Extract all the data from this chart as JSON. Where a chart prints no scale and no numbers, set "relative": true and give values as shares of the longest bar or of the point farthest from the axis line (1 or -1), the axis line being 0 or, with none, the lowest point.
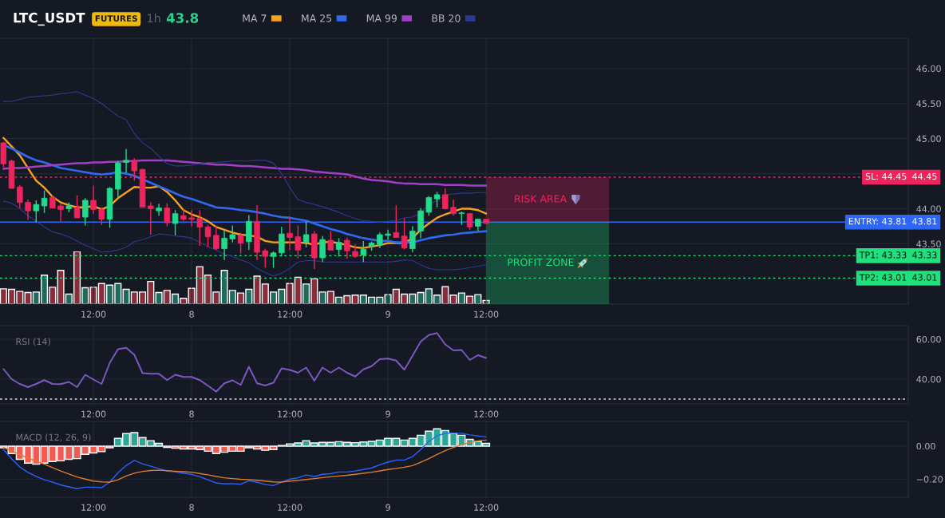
{
  "chart_data": [
    {
      "type": "candlestick",
      "title": "LTC_USDT",
      "annotations": [
        "FUTURES",
        "1h",
        "43.8",
        "44.45",
        "43.81",
        "43.33",
        "43.01",
        "RISK AREA",
        "PROFIT ZONE"
      ],
      "categories": [
        null,
        null,
        null,
        null,
        null,
        null,
        null,
        null,
        null,
        null,
        null,
        "12:00",
        null,
        null,
        null,
        null,
        null,
        null,
        null,
        null,
        null,
        null,
        null,
        "8",
        null,
        null,
        null,
        null,
        null,
        null,
        null,
        null,
        null,
        null,
        null,
        "12:00",
        null,
        null,
        null,
        null,
        null,
        null,
        null,
        null,
        null,
        null,
        null,
        "9",
        null,
        null,
        null,
        null,
        null,
        null,
        null,
        null,
        null,
        null,
        null,
        "12:00"
      ],
      "ohlc": [
        [
          44.94,
          44.95,
          44.59,
          44.64
        ],
        [
          44.68,
          44.7,
          44.29,
          44.29
        ],
        [
          44.31,
          44.34,
          44.01,
          44.09
        ],
        [
          44.09,
          44.13,
          43.84,
          43.97
        ],
        [
          43.97,
          44.12,
          43.8,
          44.06
        ],
        [
          44.04,
          44.26,
          43.94,
          44.15
        ],
        [
          44.16,
          44.19,
          44.01,
          44.01
        ],
        [
          44.04,
          44.07,
          43.82,
          43.99
        ],
        [
          44.0,
          44.09,
          43.95,
          44.04
        ],
        [
          44.02,
          44.19,
          43.87,
          43.87
        ],
        [
          43.88,
          44.15,
          43.76,
          44.12
        ],
        [
          44.12,
          44.33,
          43.93,
          43.99
        ],
        [
          43.99,
          44.02,
          43.77,
          43.85
        ],
        [
          43.85,
          44.31,
          43.73,
          44.29
        ],
        [
          44.28,
          44.68,
          44.14,
          44.65
        ],
        [
          44.66,
          44.85,
          44.51,
          44.69
        ],
        [
          44.69,
          44.72,
          44.4,
          44.54
        ],
        [
          44.56,
          44.57,
          44.02,
          44.02
        ],
        [
          44.04,
          44.09,
          43.63,
          44.0
        ],
        [
          43.97,
          44.07,
          43.9,
          44.01
        ],
        [
          44.01,
          44.08,
          43.75,
          43.8
        ],
        [
          43.79,
          43.98,
          43.62,
          43.93
        ],
        [
          43.9,
          43.99,
          43.83,
          43.85
        ],
        [
          43.87,
          43.98,
          43.75,
          43.85
        ],
        [
          43.86,
          43.98,
          43.47,
          43.74
        ],
        [
          43.74,
          43.77,
          43.45,
          43.6
        ],
        [
          43.62,
          43.75,
          43.41,
          43.43
        ],
        [
          43.43,
          43.7,
          43.27,
          43.58
        ],
        [
          43.57,
          43.76,
          43.52,
          43.63
        ],
        [
          43.62,
          43.66,
          43.36,
          43.51
        ],
        [
          43.53,
          43.91,
          43.41,
          43.82
        ],
        [
          43.82,
          44.05,
          43.27,
          43.38
        ],
        [
          43.4,
          43.43,
          43.16,
          43.32
        ],
        [
          43.32,
          43.39,
          43.16,
          43.37
        ],
        [
          43.37,
          43.74,
          43.32,
          43.64
        ],
        [
          43.65,
          43.89,
          43.41,
          43.59
        ],
        [
          43.6,
          43.76,
          43.29,
          43.41
        ],
        [
          43.52,
          43.82,
          43.45,
          43.63
        ],
        [
          43.64,
          43.68,
          43.14,
          43.3
        ],
        [
          43.3,
          43.61,
          43.24,
          43.56
        ],
        [
          43.55,
          43.68,
          43.41,
          43.41
        ],
        [
          43.42,
          43.58,
          43.32,
          43.52
        ],
        [
          43.55,
          43.59,
          43.29,
          43.4
        ],
        [
          43.39,
          43.49,
          43.3,
          43.32
        ],
        [
          43.34,
          43.54,
          43.24,
          43.42
        ],
        [
          43.47,
          43.53,
          43.4,
          43.51
        ],
        [
          43.49,
          43.66,
          43.44,
          43.63
        ],
        [
          43.62,
          43.7,
          43.56,
          43.64
        ],
        [
          43.66,
          44.05,
          43.59,
          43.59
        ],
        [
          43.61,
          43.86,
          43.42,
          43.44
        ],
        [
          43.43,
          43.75,
          43.38,
          43.68
        ],
        [
          43.68,
          44.01,
          43.58,
          43.97
        ],
        [
          43.95,
          44.18,
          43.9,
          44.16
        ],
        [
          44.14,
          44.24,
          44.02,
          44.2
        ],
        [
          44.2,
          44.29,
          43.99,
          44.0
        ],
        [
          44.02,
          44.13,
          43.9,
          43.93
        ],
        [
          43.93,
          43.96,
          43.77,
          43.94
        ],
        [
          43.93,
          43.93,
          43.7,
          43.74
        ],
        [
          43.75,
          43.85,
          43.68,
          43.85
        ],
        [
          43.85,
          43.85,
          43.79,
          43.79
        ]
      ],
      "colors": [
        "#f0245c",
        "#f0245c",
        "#f0245c",
        "#f0245c",
        "#23d98b",
        "#23d98b",
        "#f0245c",
        "#f0245c",
        "#23d98b",
        "#f0245c",
        "#23d98b",
        "#f0245c",
        "#f0245c",
        "#23d98b",
        "#23d98b",
        "#23d98b",
        "#f0245c",
        "#f0245c",
        "#f0245c",
        "#23d98b",
        "#f0245c",
        "#23d98b",
        "#f0245c",
        "#f0245c",
        "#f0245c",
        "#f0245c",
        "#f0245c",
        "#23d98b",
        "#23d98b",
        "#f0245c",
        "#23d98b",
        "#f0245c",
        "#f0245c",
        "#23d98b",
        "#23d98b",
        "#f0245c",
        "#f0245c",
        "#23d98b",
        "#f0245c",
        "#23d98b",
        "#f0245c",
        "#23d98b",
        "#f0245c",
        "#f0245c",
        "#23d98b",
        "#23d98b",
        "#23d98b",
        "#23d98b",
        "#f0245c",
        "#f0245c",
        "#23d98b",
        "#23d98b",
        "#23d98b",
        "#23d98b",
        "#f0245c",
        "#f0245c",
        "#23d98b",
        "#f0245c",
        "#23d98b",
        "#f0245c"
      ],
      "series": [
        {
          "name": "MA 7",
          "type": "line",
          "color": "#f7a21b",
          "values": [
            45.01,
            44.89,
            44.76,
            44.58,
            44.4,
            44.3,
            44.17,
            44.09,
            44.05,
            44.02,
            44.02,
            44.04,
            43.99,
            44.04,
            44.15,
            44.23,
            44.31,
            44.3,
            44.3,
            44.32,
            44.24,
            44.12,
            43.98,
            43.92,
            43.88,
            43.82,
            43.74,
            43.7,
            43.66,
            43.63,
            43.62,
            43.6,
            43.54,
            43.52,
            43.52,
            43.52,
            43.52,
            43.51,
            43.49,
            43.52,
            43.53,
            43.51,
            43.48,
            43.45,
            43.44,
            43.46,
            43.48,
            43.51,
            43.51,
            43.51,
            43.58,
            43.7,
            43.79,
            43.87,
            43.92,
            43.96,
            44.0,
            44.0,
            43.98,
            43.93
          ]
        },
        {
          "name": "MA 25",
          "type": "line",
          "color": "#3168f0",
          "values": [
            44.91,
            44.86,
            44.8,
            44.74,
            44.69,
            44.66,
            44.62,
            44.58,
            44.56,
            44.54,
            44.52,
            44.5,
            44.49,
            44.5,
            44.52,
            44.5,
            44.47,
            null,
            44.37,
            44.32,
            44.27,
            44.22,
            44.17,
            44.14,
            44.1,
            44.06,
            44.02,
            44.01,
            44.0,
            43.98,
            43.97,
            43.95,
            43.93,
            43.9,
            43.88,
            43.87,
            43.85,
            43.83,
            43.79,
            43.75,
            43.71,
            43.68,
            43.64,
            43.61,
            43.58,
            43.56,
            43.54,
            43.54,
            43.52,
            43.52,
            43.52,
            43.55,
            43.58,
            43.6,
            43.62,
            43.63,
            43.65,
            43.66,
            43.67,
            43.68
          ]
        },
        {
          "name": "MA 99",
          "type": "line",
          "color": "#a13fc6",
          "values": [
            44.57,
            44.58,
            44.58,
            44.59,
            44.6,
            44.61,
            44.62,
            44.63,
            44.64,
            44.65,
            44.65,
            44.66,
            44.66,
            44.67,
            44.67,
            44.68,
            44.68,
            44.69,
            44.69,
            44.69,
            44.69,
            44.68,
            44.67,
            44.66,
            44.65,
            44.64,
            44.63,
            44.63,
            44.62,
            44.61,
            44.61,
            44.6,
            44.59,
            44.58,
            44.57,
            44.57,
            44.56,
            44.55,
            44.53,
            44.52,
            44.51,
            44.5,
            44.49,
            44.46,
            44.43,
            44.41,
            44.4,
            44.39,
            44.37,
            44.36,
            44.36,
            44.35,
            44.35,
            44.35,
            44.34,
            44.34,
            44.34,
            44.33,
            44.33,
            44.33
          ]
        },
        {
          "name": "BB 20",
          "type": "line",
          "color": "#2c3a8f",
          "values": [
            45.53,
            45.53,
            45.56,
            45.59,
            45.6,
            45.61,
            45.62,
            45.64,
            45.65,
            45.67,
            45.62,
            45.57,
            45.5,
            45.41,
            45.32,
            45.27,
            45.07,
            44.94,
            44.86,
            44.75,
            44.64,
            44.61,
            44.61,
            44.62,
            44.64,
            44.66,
            44.66,
            44.67,
            44.68,
            44.68,
            44.68,
            44.69,
            44.69,
            44.65,
            44.5,
            44.3,
            44.13,
            44.09,
            44.06,
            44.03,
            43.99,
            43.95,
            43.9,
            43.86,
            43.83,
            43.82,
            43.81,
            43.82,
            43.83,
            43.87,
            43.88,
            43.94,
            44.06,
            44.12,
            44.2,
            44.21,
            44.22,
            44.22,
            44.23,
            44.23
          ]
        },
        {
          "type": "line",
          "color": "#2c3a8f",
          "values": [
            44.11,
            44.08,
            44.0,
            43.9,
            43.82,
            43.74,
            43.67,
            43.64,
            43.6,
            43.54,
            43.48,
            43.43,
            43.38,
            43.39,
            43.41,
            43.45,
            43.53,
            43.56,
            43.6,
            43.64,
            43.63,
            43.61,
            43.6,
            43.58,
            43.52,
            43.46,
            43.41,
            43.35,
            43.32,
            43.27,
            43.23,
            43.15,
            43.09,
            43.04,
            43.08,
            43.15,
            43.24,
            43.26,
            43.26,
            43.24,
            43.24,
            43.24,
            43.24,
            43.24,
            43.24,
            43.24,
            43.24,
            43.24,
            43.25,
            43.27,
            43.26,
            43.2,
            43.15,
            43.13,
            43.13,
            43.13,
            43.14,
            43.16,
            43.18,
            43.2
          ]
        }
      ],
      "ylim": [
        42.64,
        46.43
      ],
      "yticks": [
        {
          "value": 43.5,
          "label": "43.50"
        },
        {
          "value": 44,
          "label": "44.00"
        },
        {
          "value": 44.5,
          "label": null
        },
        {
          "value": 45,
          "label": "45.00"
        },
        {
          "value": 45.5,
          "label": "45.50"
        },
        {
          "value": 46,
          "label": "46.00"
        }
      ],
      "ref_lines": [
        {
          "axis": "y",
          "value": 44.45,
          "label": "SL: 44.45",
          "color": "#f0245c",
          "line_style": "dotted"
        },
        {
          "axis": "y",
          "value": 43.81,
          "label": "ENTRY: 43.81",
          "color": "#2e66f5",
          "line_style": "solid"
        },
        {
          "axis": "y",
          "value": 43.33,
          "label": "TP1: 43.33",
          "color": "#1fe07a",
          "line_style": "dotted"
        },
        {
          "axis": "y",
          "value": 43.01,
          "label": "TP2: 43.01",
          "color": "#1fe07a",
          "line_style": "dotted"
        }
      ],
      "grid": true,
      "legend": "top"
    },
    {
      "type": "bar",
      "relative": true,
      "tick_labels": false,
      "categories": [
        null,
        null,
        null,
        null,
        null,
        null,
        null,
        null,
        null,
        null,
        null,
        null,
        null,
        null,
        null,
        null,
        null,
        null,
        null,
        null,
        null,
        null,
        null,
        null,
        null,
        null,
        null,
        null,
        null,
        null,
        null,
        null,
        null,
        null,
        null,
        null,
        null,
        null,
        null,
        null,
        null,
        null,
        null,
        null,
        null,
        null,
        null,
        null,
        null,
        null,
        null,
        null,
        null,
        null,
        null,
        null,
        null,
        null,
        null,
        null
      ],
      "values": [
        0.29,
        0.28,
        0.24,
        0.22,
        0.23,
        0.55,
        0.32,
        0.64,
        0.19,
        1,
        0.31,
        0.32,
        0.39,
        0.36,
        0.39,
        0.28,
        0.23,
        0.23,
        0.43,
        0.22,
        0.26,
        0.19,
        0.11,
        0.3,
        0.71,
        0.55,
        0.23,
        0.64,
        0.26,
        0.21,
        0.28,
        0.53,
        0.38,
        0.23,
        0.28,
        0.39,
        0.51,
        0.38,
        0.48,
        0.23,
        0.24,
        0.13,
        0.16,
        0.17,
        0.17,
        0.13,
        0.13,
        0.18,
        0.28,
        0.19,
        0.19,
        0.22,
        0.29,
        0.17,
        0.33,
        0.17,
        0.21,
        0.15,
        0.18,
        0.07
      ],
      "colors": [
        "#8a2d3b",
        "#8a2d3b",
        "#8a2d3b",
        "#8a2d3b",
        "#1e6b5c",
        "#1e6b5c",
        "#8a2d3b",
        "#8a2d3b",
        "#1e6b5c",
        "#8a2d3b",
        "#1e6b5c",
        "#8a2d3b",
        "#8a2d3b",
        "#1e6b5c",
        "#1e6b5c",
        "#1e6b5c",
        "#8a2d3b",
        "#8a2d3b",
        "#8a2d3b",
        "#1e6b5c",
        "#8a2d3b",
        "#1e6b5c",
        "#8a2d3b",
        "#8a2d3b",
        "#8a2d3b",
        "#8a2d3b",
        "#8a2d3b",
        "#1e6b5c",
        "#1e6b5c",
        "#8a2d3b",
        "#1e6b5c",
        "#8a2d3b",
        "#8a2d3b",
        "#1e6b5c",
        "#1e6b5c",
        "#8a2d3b",
        "#8a2d3b",
        "#1e6b5c",
        "#8a2d3b",
        "#1e6b5c",
        "#8a2d3b",
        "#1e6b5c",
        "#8a2d3b",
        "#8a2d3b",
        "#1e6b5c",
        "#1e6b5c",
        "#1e6b5c",
        "#1e6b5c",
        "#8a2d3b",
        "#8a2d3b",
        "#1e6b5c",
        "#1e6b5c",
        "#1e6b5c",
        "#1e6b5c",
        "#8a2d3b",
        "#8a2d3b",
        "#1e6b5c",
        "#8a2d3b",
        "#1e6b5c",
        "#8a2d3b"
      ]
    },
    {
      "type": "line",
      "title": "RSI (14)",
      "categories": [
        null,
        null,
        null,
        null,
        null,
        null,
        null,
        null,
        null,
        null,
        null,
        "12:00",
        null,
        null,
        null,
        null,
        null,
        null,
        null,
        null,
        null,
        null,
        null,
        "8",
        null,
        null,
        null,
        null,
        null,
        null,
        null,
        null,
        null,
        null,
        null,
        "12:00",
        null,
        null,
        null,
        null,
        null,
        null,
        null,
        null,
        null,
        null,
        null,
        "9",
        null,
        null,
        null,
        null,
        null,
        null,
        null,
        null,
        null,
        null,
        null,
        "12:00"
      ],
      "series": [
        {
          "color": "#7e57c2",
          "values": [
            45.1,
            40.0,
            37.6,
            36.0,
            37.6,
            39.5,
            37.6,
            37.5,
            38.6,
            36.0,
            42.2,
            39.8,
            37.6,
            48.2,
            55.0,
            55.7,
            52.2,
            43.0,
            42.7,
            42.7,
            39.5,
            42.2,
            41.1,
            41.1,
            39.5,
            36.7,
            33.7,
            37.9,
            39.4,
            37.1,
            46.2,
            37.9,
            36.8,
            38.2,
            45.4,
            44.6,
            43.2,
            45.8,
            39.2,
            45.8,
            43.2,
            45.8,
            43.2,
            41.3,
            44.9,
            46.5,
            50.0,
            50.3,
            49.3,
            44.7,
            51.7,
            58.8,
            62.1,
            63.1,
            57.4,
            54.4,
            54.6,
            49.6,
            52.0,
            50.6
          ]
        }
      ],
      "ylim": [
        27.6,
        66.8
      ],
      "yticks": [
        {
          "value": 40,
          "label": "40.00"
        },
        {
          "value": 60,
          "label": "60.00"
        }
      ],
      "ref_lines": [
        {
          "axis": "y",
          "value": 30,
          "color": "#d1d4dc",
          "line_style": "dotted"
        }
      ],
      "grid": true
    },
    {
      "type": "bar",
      "title": "MACD (12, 26, 9)",
      "categories": [
        null,
        null,
        null,
        null,
        null,
        null,
        null,
        null,
        null,
        null,
        null,
        "12:00",
        null,
        null,
        null,
        null,
        null,
        null,
        null,
        null,
        null,
        null,
        null,
        "8",
        null,
        null,
        null,
        null,
        null,
        null,
        null,
        null,
        null,
        null,
        null,
        "12:00",
        null,
        null,
        null,
        null,
        null,
        null,
        null,
        null,
        null,
        null,
        null,
        "9",
        null,
        null,
        null,
        null,
        null,
        null,
        null,
        null,
        null,
        null,
        null,
        "12:00"
      ],
      "series": [
        {
          "type": "bar",
          "colors": [
            "#f05a50",
            "#f05a50",
            "#f05a50",
            "#f05a50",
            "#f05a50",
            "#f05a50",
            "#f05a50",
            "#f05a50",
            "#f05a50",
            "#f05a50",
            "#f05a50",
            "#f05a50",
            "#f05a50",
            "#f05a50",
            "#2aa895",
            "#2aa895",
            "#2aa895",
            "#2aa895",
            "#2aa895",
            "#2aa895",
            "#f05a50",
            "#f05a50",
            "#f05a50",
            "#f05a50",
            "#f05a50",
            "#f05a50",
            "#f05a50",
            "#f05a50",
            "#f05a50",
            "#f05a50",
            "#f05a50",
            "#f05a50",
            "#f05a50",
            "#f05a50",
            "#2aa895",
            "#2aa895",
            "#2aa895",
            "#2aa895",
            "#2aa895",
            "#2aa895",
            "#2aa895",
            "#2aa895",
            "#2aa895",
            "#2aa895",
            "#2aa895",
            "#2aa895",
            "#2aa895",
            "#2aa895",
            "#2aa895",
            "#2aa895",
            "#2aa895",
            "#2aa895",
            "#2aa895",
            "#2aa895",
            "#2aa895",
            "#2aa895",
            "#2aa895",
            "#2aa895",
            "#2aa895",
            "#2aa895"
          ],
          "values": [
            -0.01,
            -0.045,
            -0.08,
            -0.103,
            -0.109,
            -0.103,
            -0.093,
            -0.089,
            -0.08,
            -0.076,
            -0.05,
            -0.041,
            -0.033,
            -0.01,
            0.047,
            0.076,
            0.082,
            0.052,
            0.033,
            0.017,
            -0.008,
            -0.012,
            -0.017,
            -0.017,
            -0.021,
            -0.031,
            -0.045,
            -0.037,
            -0.031,
            -0.031,
            -0.01,
            -0.017,
            -0.025,
            -0.021,
            0.004,
            0.014,
            0.019,
            0.033,
            0.019,
            0.023,
            0.023,
            0.027,
            0.023,
            0.021,
            0.025,
            0.029,
            0.037,
            0.047,
            0.047,
            0.037,
            0.047,
            0.066,
            0.091,
            0.105,
            0.095,
            0.076,
            0.066,
            0.041,
            0.029,
            0.017
          ]
        },
        {
          "type": "line",
          "color": "#2962ff",
          "values": [
            -0.021,
            -0.076,
            -0.126,
            -0.159,
            -0.184,
            -0.204,
            -0.219,
            -0.235,
            -0.247,
            -0.258,
            -0.249,
            -0.249,
            -0.252,
            -0.218,
            -0.161,
            -0.118,
            -0.087,
            -0.107,
            -0.122,
            -0.136,
            -0.151,
            -0.157,
            -0.165,
            -0.171,
            -0.186,
            -0.204,
            -0.223,
            -0.229,
            -0.227,
            -0.231,
            -0.21,
            -0.219,
            -0.233,
            -0.239,
            -0.219,
            -0.2,
            -0.192,
            -0.175,
            -0.184,
            -0.171,
            -0.167,
            -0.157,
            -0.157,
            -0.151,
            -0.142,
            -0.132,
            -0.113,
            -0.097,
            -0.084,
            -0.084,
            -0.064,
            -0.021,
            0.029,
            0.062,
            0.078,
            0.078,
            0.078,
            0.068,
            0.062,
            0.056
          ]
        },
        {
          "type": "line",
          "color": "#e07b2a",
          "values": [
            -0.008,
            -0.03,
            -0.051,
            -0.072,
            -0.091,
            -0.11,
            -0.13,
            -0.151,
            -0.169,
            -0.187,
            -0.2,
            -0.212,
            -0.217,
            -0.218,
            -0.204,
            -0.181,
            -0.164,
            -0.153,
            -0.148,
            -0.146,
            -0.149,
            -0.152,
            -0.155,
            -0.158,
            -0.166,
            -0.174,
            -0.184,
            -0.192,
            -0.197,
            -0.201,
            -0.203,
            -0.207,
            -0.212,
            -0.217,
            -0.218,
            -0.212,
            -0.208,
            -0.202,
            -0.197,
            -0.191,
            -0.186,
            -0.181,
            -0.177,
            -0.171,
            -0.165,
            -0.158,
            -0.15,
            -0.142,
            -0.135,
            -0.128,
            -0.118,
            -0.098,
            -0.076,
            -0.05,
            -0.027,
            -0.008,
            0.009,
            0.022,
            0.032,
            0.037
          ]
        }
      ],
      "ylim": [
        -0.31,
        0.15
      ],
      "yticks": [
        {
          "value": 0,
          "label": "0.00"
        },
        {
          "value": -0.2,
          "label": "−0.20"
        }
      ],
      "grid": true
    }
  ]
}
